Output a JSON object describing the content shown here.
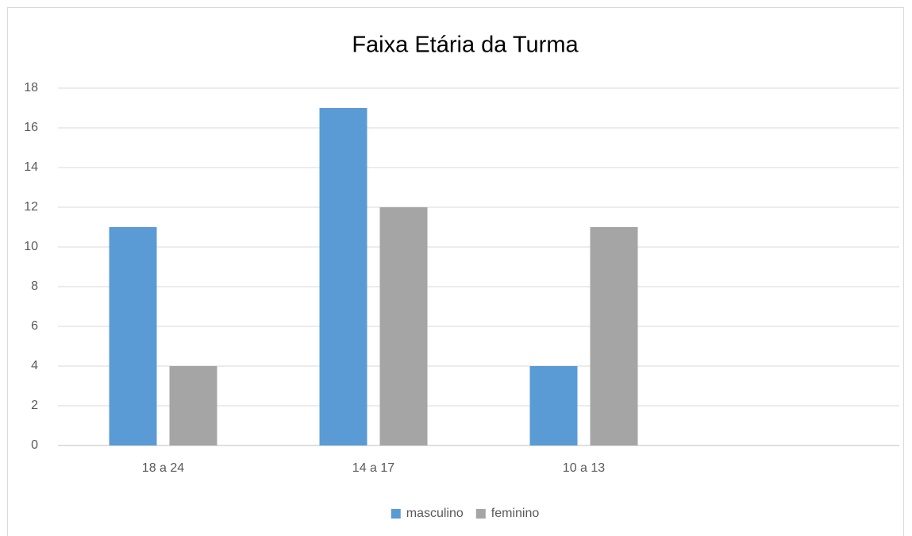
{
  "chart_data": {
    "type": "bar",
    "title": "Faixa Etária da Turma",
    "categories": [
      "18 a 24",
      "14 a 17",
      "10 a 13",
      null
    ],
    "series": [
      {
        "name": "masculino",
        "color": "#5b9bd5",
        "values": [
          11,
          17,
          4,
          null
        ]
      },
      {
        "name": "feminino",
        "color": "#a5a5a5",
        "values": [
          4,
          12,
          11,
          null
        ]
      }
    ],
    "ylim": [
      0,
      18
    ],
    "yticks": [
      0,
      2,
      4,
      6,
      8,
      10,
      12,
      14,
      16,
      18
    ],
    "grid": true,
    "legend": "bottom"
  }
}
